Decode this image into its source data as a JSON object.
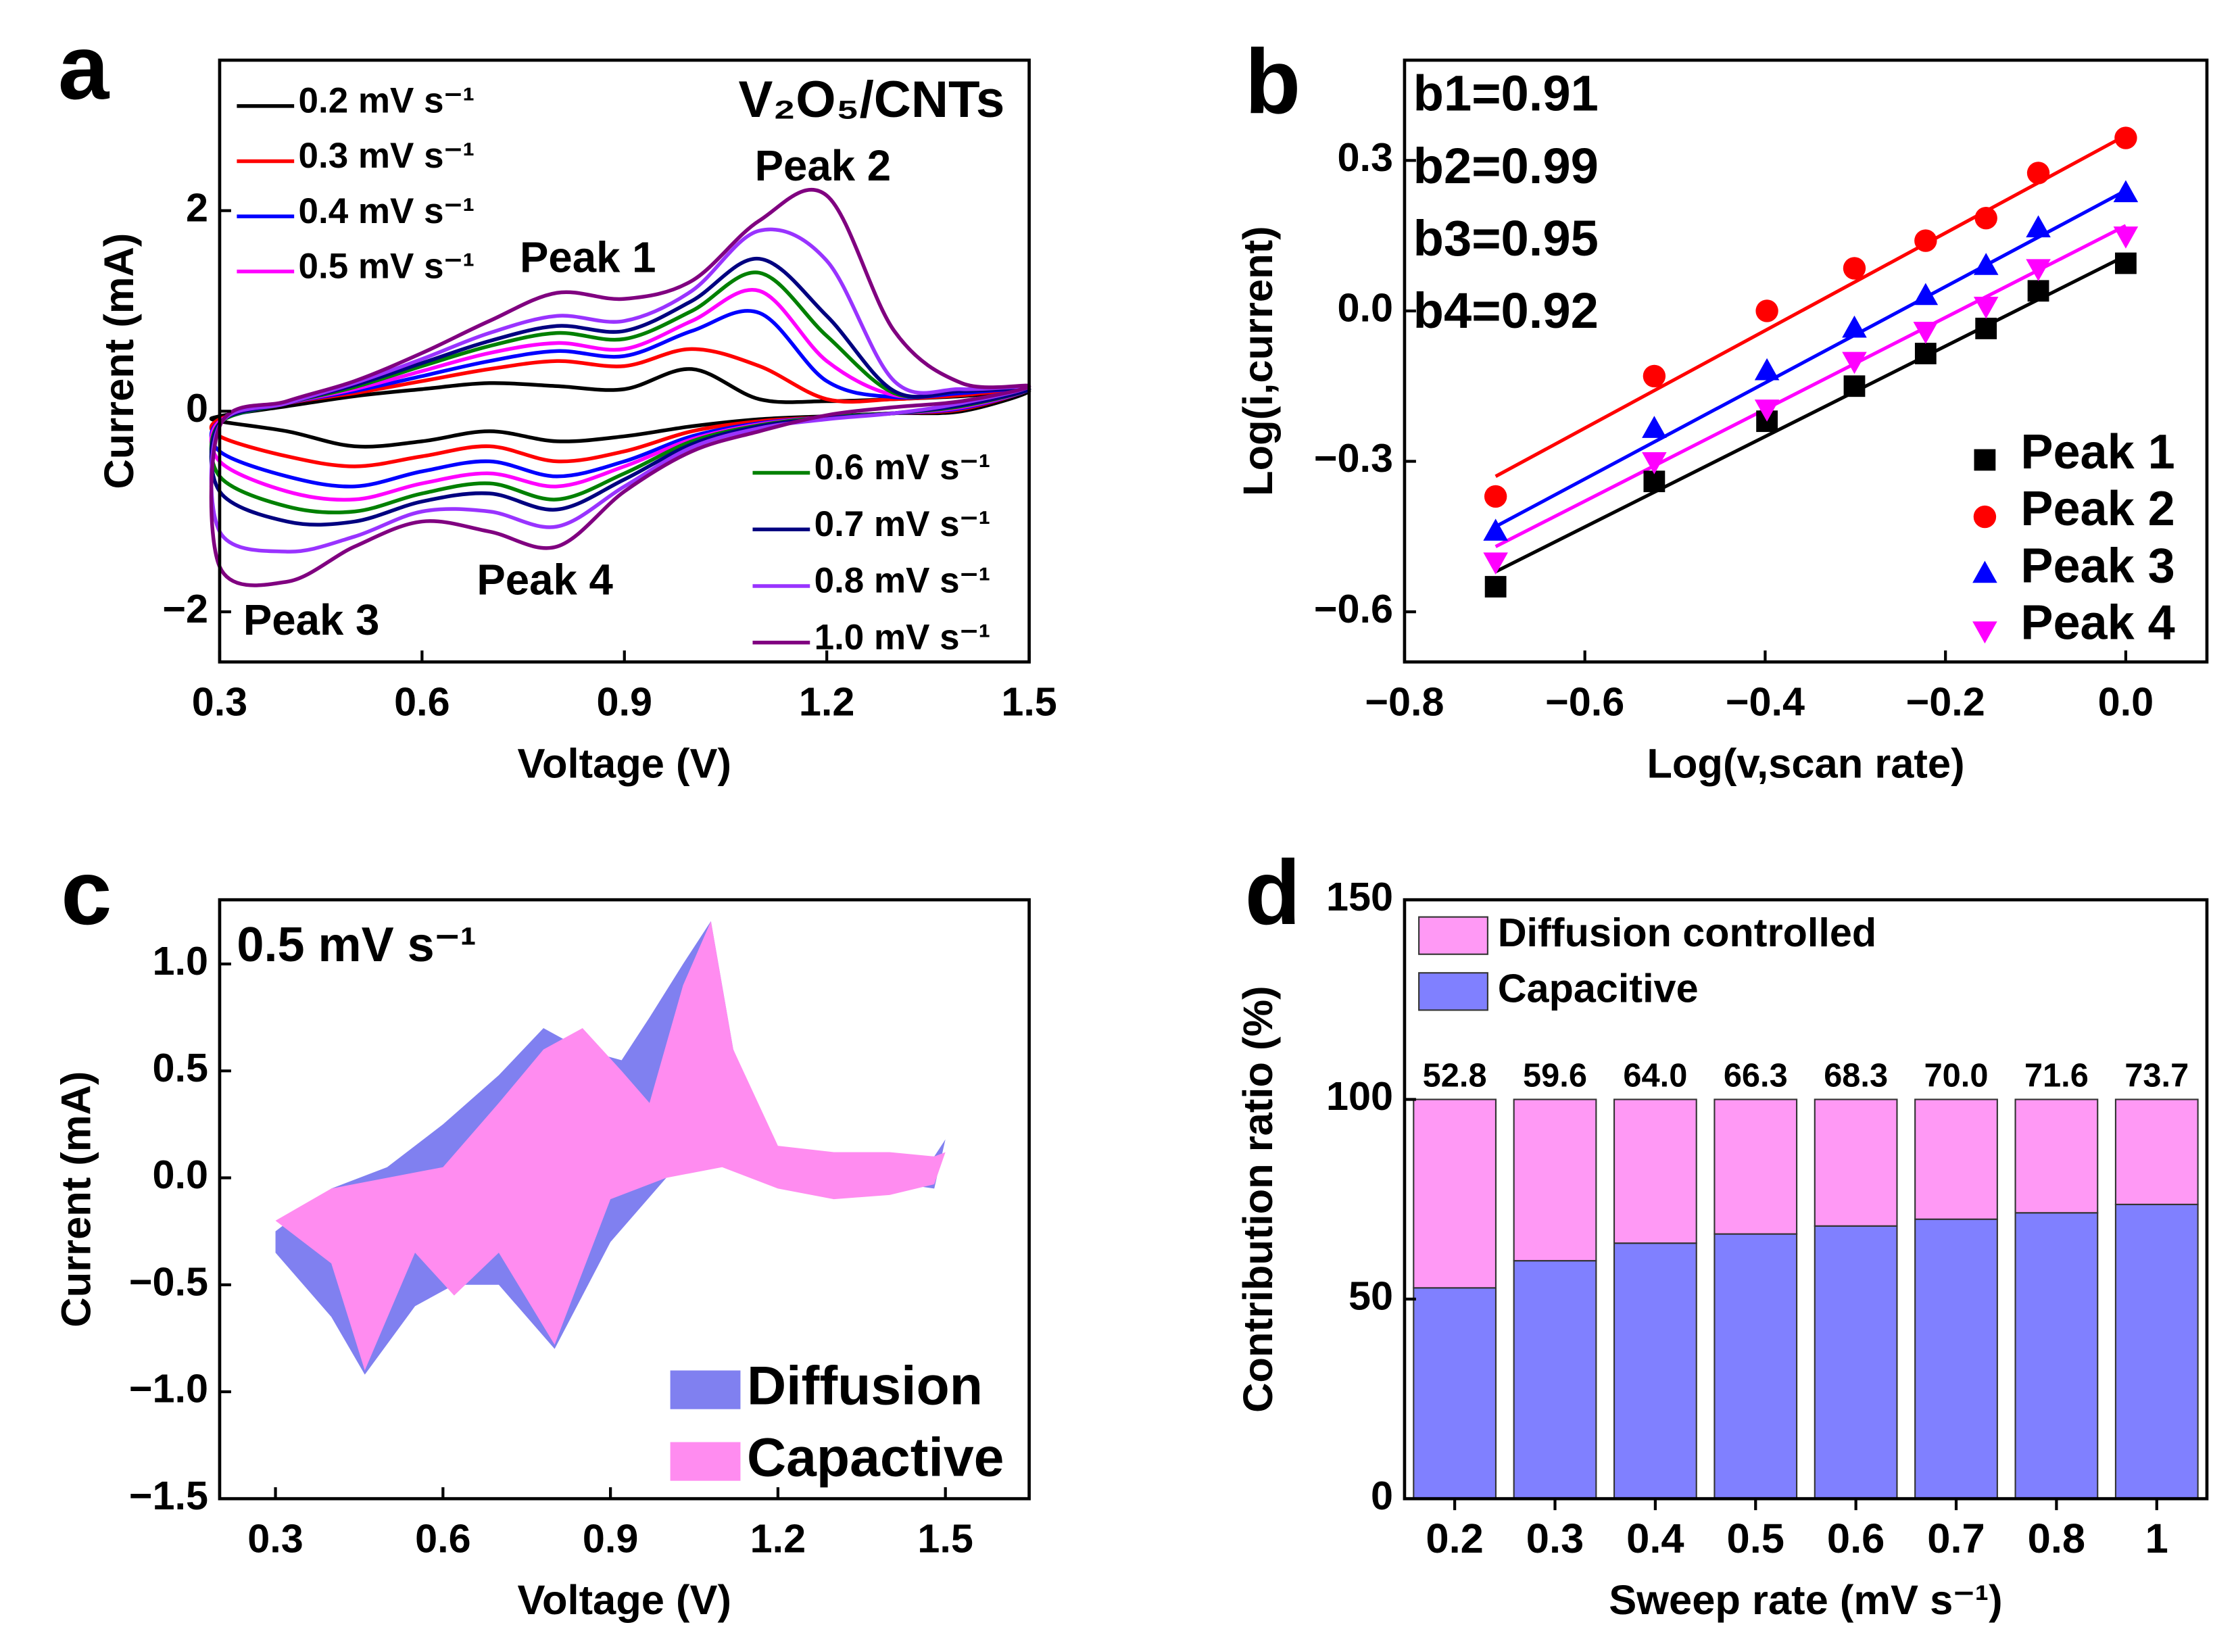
{
  "chart_data": [
    {
      "type": "line",
      "panel_label": "a",
      "x_label": "Voltage (V)",
      "y_label": "Current (mA)",
      "annotations": [
        "V₂O₅/CNTs",
        "Peak 2",
        "Peak 1",
        "Peak 4",
        "Peak 3"
      ],
      "xlim": [
        0.3,
        1.5
      ],
      "xticks": [
        0.3,
        0.6,
        0.9,
        1.2,
        1.5
      ],
      "ylim": [
        -2.5,
        3.5
      ],
      "yticks": [
        {
          "value": -2,
          "label": "−2"
        },
        0,
        2
      ],
      "x": [
        0.3,
        0.4,
        0.5,
        0.6,
        0.7,
        0.8,
        0.9,
        1.0,
        1.1,
        1.2,
        1.3,
        1.4,
        1.5,
        1.4,
        1.3,
        1.2,
        1.1,
        1.0,
        0.9,
        0.8,
        0.7,
        0.6,
        0.5,
        0.4,
        0.3
      ],
      "series": [
        {
          "name": "0.2 mV s⁻¹",
          "color": "#000000",
          "values": [
            -0.05,
            0.05,
            0.15,
            0.22,
            0.28,
            0.25,
            0.22,
            0.42,
            0.12,
            0.1,
            0.12,
            0.15,
            0.2,
            0.0,
            -0.02,
            -0.05,
            -0.08,
            -0.15,
            -0.25,
            -0.3,
            -0.2,
            -0.3,
            -0.35,
            -0.2,
            -0.1
          ]
        },
        {
          "name": "0.3 mV s⁻¹",
          "color": "#ff0000",
          "values": [
            -0.08,
            0.08,
            0.18,
            0.3,
            0.42,
            0.5,
            0.45,
            0.62,
            0.45,
            0.12,
            0.12,
            0.16,
            0.22,
            0.02,
            -0.02,
            -0.06,
            -0.1,
            -0.2,
            -0.4,
            -0.5,
            -0.35,
            -0.45,
            -0.55,
            -0.45,
            -0.25
          ]
        },
        {
          "name": "0.4 mV s⁻¹",
          "color": "#0000ff",
          "values": [
            -0.1,
            0.08,
            0.2,
            0.35,
            0.5,
            0.6,
            0.55,
            0.8,
            0.98,
            0.3,
            0.14,
            0.18,
            0.22,
            0.03,
            -0.02,
            -0.06,
            -0.12,
            -0.25,
            -0.5,
            -0.65,
            -0.5,
            -0.6,
            -0.75,
            -0.65,
            -0.4
          ]
        },
        {
          "name": "0.5 mV s⁻¹",
          "color": "#ff00ff",
          "values": [
            -0.1,
            0.08,
            0.22,
            0.4,
            0.58,
            0.68,
            0.62,
            0.9,
            1.2,
            0.5,
            0.16,
            0.2,
            0.22,
            0.04,
            -0.02,
            -0.06,
            -0.13,
            -0.28,
            -0.55,
            -0.75,
            -0.62,
            -0.72,
            -0.88,
            -0.8,
            -0.5
          ]
        },
        {
          "name": "0.6 mV s⁻¹",
          "color": "#008000",
          "values": [
            -0.12,
            0.08,
            0.24,
            0.45,
            0.65,
            0.78,
            0.72,
            1.0,
            1.38,
            0.75,
            0.18,
            0.2,
            0.22,
            0.05,
            -0.02,
            -0.06,
            -0.14,
            -0.3,
            -0.62,
            -0.88,
            -0.72,
            -0.82,
            -1.0,
            -0.95,
            -0.65
          ]
        },
        {
          "name": "0.7 mV s⁻¹",
          "color": "#000080",
          "values": [
            -0.12,
            0.08,
            0.26,
            0.48,
            0.7,
            0.85,
            0.8,
            1.1,
            1.52,
            0.95,
            0.2,
            0.2,
            0.22,
            0.06,
            -0.02,
            -0.07,
            -0.15,
            -0.33,
            -0.68,
            -0.98,
            -0.82,
            -0.9,
            -1.1,
            -1.1,
            -0.8
          ]
        },
        {
          "name": "0.8 mV s⁻¹",
          "color": "#9933ff",
          "values": [
            -0.14,
            0.08,
            0.28,
            0.52,
            0.78,
            0.95,
            0.9,
            1.2,
            1.8,
            1.5,
            0.3,
            0.22,
            0.24,
            0.08,
            -0.02,
            -0.08,
            -0.17,
            -0.36,
            -0.75,
            -1.15,
            -1.0,
            -1.0,
            -1.25,
            -1.4,
            -1.2
          ]
        },
        {
          "name": "1.0 mV s⁻¹",
          "color": "#800080",
          "values": [
            -0.15,
            0.1,
            0.3,
            0.58,
            0.9,
            1.18,
            1.12,
            1.3,
            1.9,
            2.15,
            0.8,
            0.28,
            0.25,
            0.1,
            0.04,
            -0.04,
            -0.2,
            -0.4,
            -0.8,
            -1.35,
            -1.2,
            -1.1,
            -1.35,
            -1.7,
            -1.55
          ]
        }
      ]
    },
    {
      "type": "scatter",
      "panel_label": "b",
      "x_label": "Log(v,scan rate)",
      "y_label": "Log(i,current)",
      "annotations": [
        "b1=0.91",
        "b2=0.99",
        "b3=0.95",
        "b4=0.92"
      ],
      "xlim": [
        -0.8,
        0.09
      ],
      "xticks": [
        {
          "value": -0.8,
          "label": "−0.8"
        },
        {
          "value": -0.6,
          "label": "−0.6"
        },
        {
          "value": -0.4,
          "label": "−0.4"
        },
        {
          "value": -0.2,
          "label": "−0.2"
        },
        {
          "value": 0,
          "label": "0.0"
        }
      ],
      "ylim": [
        -0.7,
        0.5
      ],
      "yticks": [
        {
          "value": -0.6,
          "label": "−0.6"
        },
        {
          "value": -0.3,
          "label": "−0.3"
        },
        {
          "value": 0,
          "label": "0.0"
        },
        0.3
      ],
      "x": [
        -0.699,
        -0.523,
        -0.398,
        -0.301,
        -0.222,
        -0.155,
        -0.097,
        0
      ],
      "series": [
        {
          "name": "Peak 1",
          "color": "#000000",
          "marker": "square",
          "values": [
            -0.55,
            -0.34,
            -0.22,
            -0.15,
            -0.085,
            -0.035,
            0.04,
            0.095
          ],
          "fit": [
            -0.52,
            0.11
          ]
        },
        {
          "name": "Peak 2",
          "color": "#ff0000",
          "marker": "circle",
          "values": [
            -0.37,
            -0.13,
            0.0,
            0.085,
            0.14,
            0.185,
            0.275,
            0.345
          ],
          "fit": [
            -0.33,
            0.35
          ]
        },
        {
          "name": "Peak 3",
          "color": "#0000ff",
          "marker": "triangle-up",
          "values": [
            -0.44,
            -0.235,
            -0.12,
            -0.035,
            0.03,
            0.09,
            0.165,
            0.235
          ],
          "fit": [
            -0.43,
            0.24
          ]
        },
        {
          "name": "Peak 4",
          "color": "#ff00ff",
          "marker": "triangle-down",
          "values": [
            -0.5,
            -0.3,
            -0.195,
            -0.1,
            -0.04,
            0.01,
            0.085,
            0.15
          ],
          "fit": [
            -0.47,
            0.17
          ]
        }
      ]
    },
    {
      "type": "area",
      "panel_label": "c",
      "x_label": "Voltage (V)",
      "y_label": "Current (mA)",
      "annotations": [
        "0.5 mV s⁻¹"
      ],
      "xlim": [
        0.2,
        1.65
      ],
      "xticks": [
        0.3,
        0.6,
        0.9,
        1.2,
        1.5
      ],
      "ylim": [
        -1.5,
        1.3
      ],
      "yticks": [
        {
          "value": -1.5,
          "label": "−1.5"
        },
        {
          "value": -1.0,
          "label": "−1.0"
        },
        {
          "value": -0.5,
          "label": "−0.5"
        },
        {
          "value": 0,
          "label": "0.0"
        },
        0.5,
        {
          "value": 1.0,
          "label": "1.0"
        }
      ],
      "x": [
        0.3,
        0.4,
        0.5,
        0.6,
        0.7,
        0.78,
        0.85,
        0.92,
        0.97,
        1.03,
        1.08,
        1.12,
        1.2,
        1.3,
        1.4,
        1.48,
        1.5,
        1.48,
        1.4,
        1.3,
        1.2,
        1.1,
        1.0,
        0.9,
        0.8,
        0.7,
        0.62,
        0.55,
        0.46,
        0.4,
        0.3
      ],
      "series": [
        {
          "name": "Diffusion",
          "color": "#8080f0",
          "values": [
            -0.25,
            -0.05,
            0.05,
            0.25,
            0.48,
            0.7,
            0.6,
            0.55,
            0.75,
            1.0,
            1.2,
            0.6,
            0.12,
            0.1,
            0.1,
            0.1,
            0.18,
            -0.05,
            -0.02,
            0.0,
            0.05,
            0.08,
            0.0,
            -0.3,
            -0.8,
            -0.5,
            -0.5,
            -0.6,
            -0.92,
            -0.65,
            -0.35
          ]
        },
        {
          "name": "Capactive",
          "color": "#ff8cf0",
          "values": [
            -0.2,
            -0.05,
            0.0,
            0.05,
            0.35,
            0.6,
            0.7,
            0.5,
            0.35,
            0.9,
            1.2,
            0.6,
            0.15,
            0.12,
            0.12,
            0.1,
            0.12,
            -0.03,
            -0.08,
            -0.1,
            -0.05,
            0.05,
            0.0,
            -0.1,
            -0.78,
            -0.35,
            -0.55,
            -0.35,
            -0.9,
            -0.4,
            -0.2
          ]
        }
      ]
    },
    {
      "type": "bar",
      "panel_label": "d",
      "x_label": "Sweep rate (mV s⁻¹)",
      "y_label": "Contribution ratio (%)",
      "ylim": [
        0,
        150
      ],
      "yticks": [
        0,
        50,
        100,
        150
      ],
      "categories": [
        "0.2",
        "0.3",
        "0.4",
        "0.5",
        "0.6",
        "0.7",
        "0.8",
        "1"
      ],
      "series": [
        {
          "name": "Diffusion controlled",
          "color": "#ff99f5",
          "values": [
            47.2,
            40.4,
            36.0,
            33.7,
            31.7,
            30.0,
            28.4,
            26.3
          ]
        },
        {
          "name": "Capacitive",
          "color": "#8080ff",
          "values": [
            52.8,
            59.6,
            64.0,
            66.3,
            68.3,
            70.0,
            71.6,
            73.7
          ],
          "value_labels": [
            "52.8",
            "59.6",
            "64.0",
            "66.3",
            "68.3",
            "70.0",
            "71.6",
            "73.7"
          ]
        }
      ]
    }
  ]
}
